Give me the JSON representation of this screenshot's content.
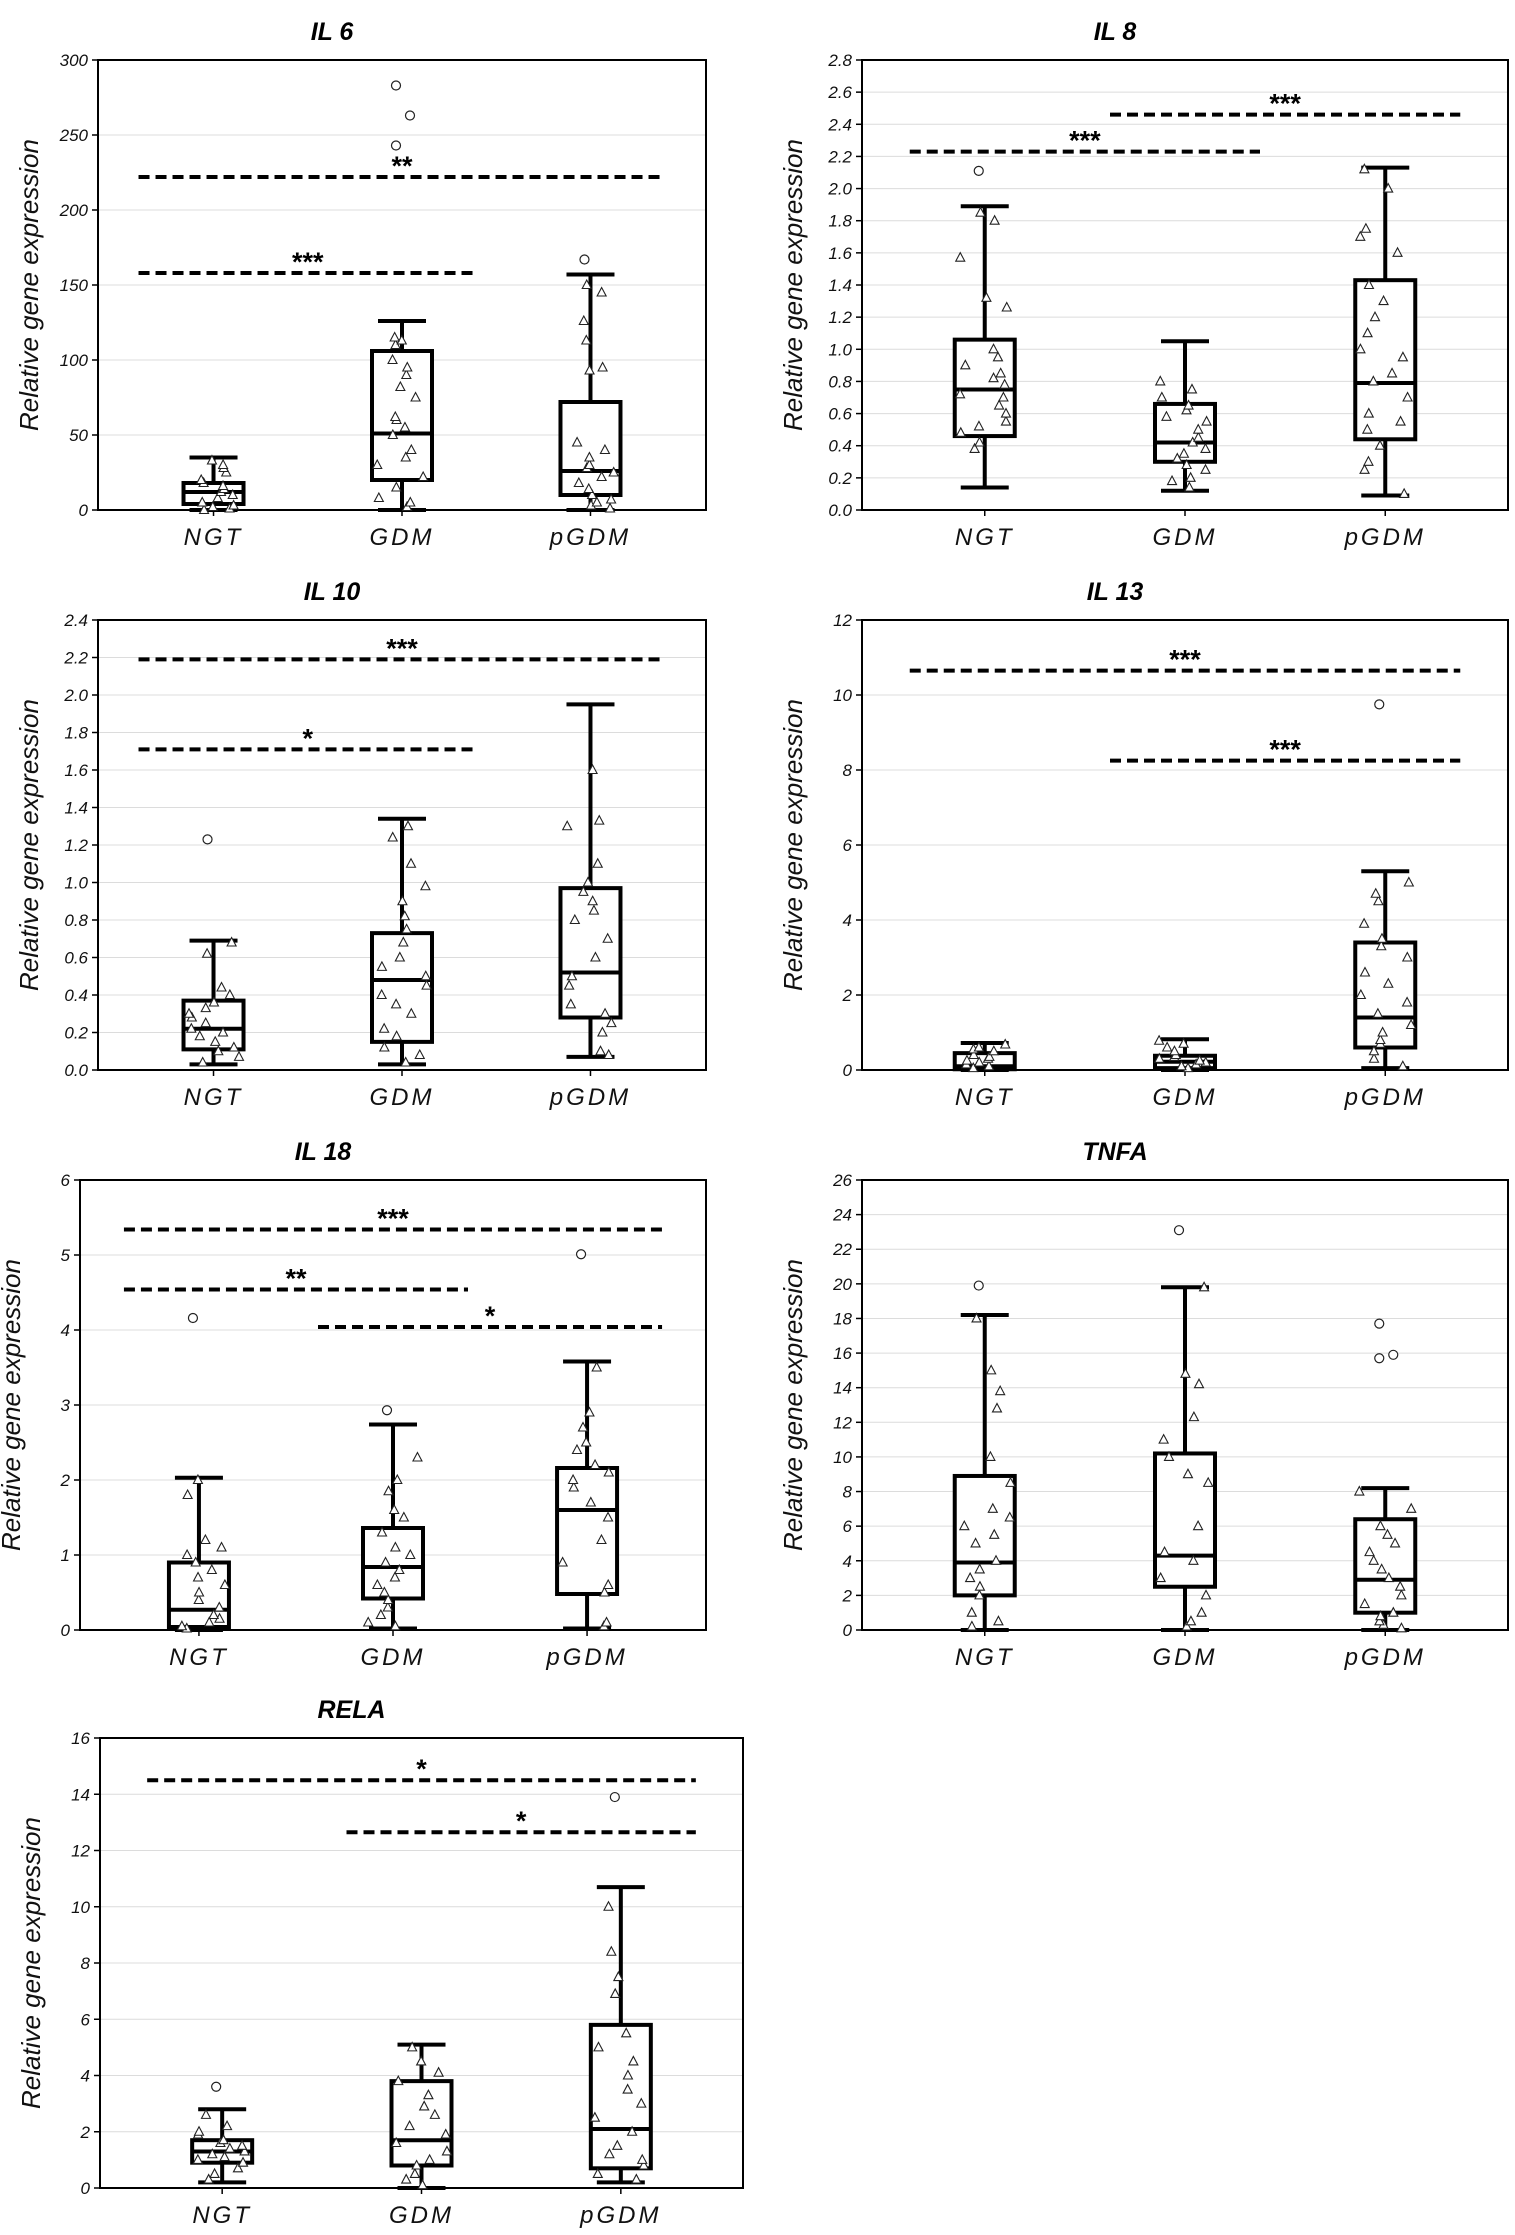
{
  "chart_data": [
    {
      "type": "box",
      "title": "IL 6",
      "ylabel": "Relative gene expression",
      "ylim": [
        0,
        300
      ],
      "yticks": [
        0,
        50,
        100,
        150,
        200,
        250,
        300
      ],
      "ytick_labels": [
        "0",
        "50",
        "100",
        "150",
        "200",
        "250",
        "300"
      ],
      "categories": [
        "NGT",
        "GDM",
        "pGDM"
      ],
      "boxes": [
        {
          "whisker_low": 0,
          "q1": 4,
          "median": 12,
          "q3": 18,
          "whisker_high": 35,
          "outliers": [],
          "points": [
            0,
            1,
            2,
            3,
            5,
            8,
            10,
            12,
            14,
            16,
            18,
            20,
            25,
            28,
            30,
            33
          ]
        },
        {
          "whisker_low": 0,
          "q1": 20,
          "median": 51,
          "q3": 106,
          "whisker_high": 126,
          "outliers": [
            243,
            263,
            283
          ],
          "points": [
            2,
            5,
            8,
            15,
            22,
            30,
            35,
            40,
            50,
            55,
            60,
            62,
            75,
            82,
            90,
            95,
            100,
            110,
            113,
            115
          ]
        },
        {
          "whisker_low": 0,
          "q1": 10,
          "median": 26,
          "q3": 72,
          "whisker_high": 157,
          "outliers": [
            167
          ],
          "points": [
            1,
            3,
            5,
            7,
            10,
            14,
            18,
            22,
            25,
            28,
            30,
            35,
            40,
            45,
            93,
            95,
            113,
            126,
            145,
            150
          ]
        }
      ],
      "significance": [
        {
          "label": "**",
          "from": "NGT",
          "to": "pGDM",
          "y": 222
        },
        {
          "label": "***",
          "from": "NGT",
          "to": "GDM",
          "y": 158
        }
      ]
    },
    {
      "type": "box",
      "title": "IL 8",
      "ylabel": "Relative gene expression",
      "ylim": [
        0,
        2.8
      ],
      "yticks": [
        0,
        0.2,
        0.4,
        0.6,
        0.8,
        1.0,
        1.2,
        1.4,
        1.6,
        1.8,
        2.0,
        2.2,
        2.4,
        2.6,
        2.8
      ],
      "ytick_labels": [
        "0.0",
        "0.2",
        "0.4",
        "0.6",
        "0.8",
        "1.0",
        "1.2",
        "1.4",
        "1.6",
        "1.8",
        "2.0",
        "2.2",
        "2.4",
        "2.6",
        "2.8"
      ],
      "categories": [
        "NGT",
        "GDM",
        "pGDM"
      ],
      "boxes": [
        {
          "whisker_low": 0.14,
          "q1": 0.46,
          "median": 0.75,
          "q3": 1.06,
          "whisker_high": 1.89,
          "outliers": [
            2.11
          ],
          "points": [
            0.38,
            0.42,
            0.48,
            0.52,
            0.55,
            0.6,
            0.65,
            0.7,
            0.72,
            0.78,
            0.82,
            0.85,
            0.9,
            0.95,
            1.0,
            1.26,
            1.32,
            1.57,
            1.8,
            1.85
          ]
        },
        {
          "whisker_low": 0.12,
          "q1": 0.3,
          "median": 0.42,
          "q3": 0.66,
          "whisker_high": 1.05,
          "outliers": [],
          "points": [
            0.14,
            0.18,
            0.2,
            0.25,
            0.28,
            0.32,
            0.35,
            0.38,
            0.42,
            0.45,
            0.5,
            0.55,
            0.58,
            0.62,
            0.65,
            0.7,
            0.75,
            0.8
          ]
        },
        {
          "whisker_low": 0.09,
          "q1": 0.44,
          "median": 0.79,
          "q3": 1.43,
          "whisker_high": 2.13,
          "outliers": [],
          "points": [
            0.1,
            0.25,
            0.3,
            0.4,
            0.5,
            0.55,
            0.6,
            0.7,
            0.8,
            0.85,
            0.95,
            1.0,
            1.1,
            1.2,
            1.3,
            1.4,
            1.6,
            1.7,
            1.75,
            2.0,
            2.12
          ]
        }
      ],
      "significance": [
        {
          "label": "***",
          "from": "NGT",
          "to": "GDM",
          "y": 2.23
        },
        {
          "label": "***",
          "from": "GDM",
          "to": "pGDM",
          "y": 2.46
        }
      ]
    },
    {
      "type": "box",
      "title": "IL 10",
      "ylabel": "Relative gene expression",
      "ylim": [
        0,
        2.4
      ],
      "yticks": [
        0,
        0.2,
        0.4,
        0.6,
        0.8,
        1.0,
        1.2,
        1.4,
        1.6,
        1.8,
        2.0,
        2.2,
        2.4
      ],
      "ytick_labels": [
        "0.0",
        "0.2",
        "0.4",
        "0.6",
        "0.8",
        "1.0",
        "1.2",
        "1.4",
        "1.6",
        "1.8",
        "2.0",
        "2.2",
        "2.4"
      ],
      "categories": [
        "NGT",
        "GDM",
        "pGDM"
      ],
      "boxes": [
        {
          "whisker_low": 0.03,
          "q1": 0.11,
          "median": 0.22,
          "q3": 0.37,
          "whisker_high": 0.69,
          "outliers": [
            1.23
          ],
          "points": [
            0.04,
            0.07,
            0.1,
            0.12,
            0.15,
            0.18,
            0.2,
            0.22,
            0.25,
            0.28,
            0.3,
            0.33,
            0.36,
            0.4,
            0.44,
            0.62,
            0.68
          ]
        },
        {
          "whisker_low": 0.03,
          "q1": 0.15,
          "median": 0.48,
          "q3": 0.73,
          "whisker_high": 1.34,
          "outliers": [],
          "points": [
            0.04,
            0.08,
            0.12,
            0.18,
            0.22,
            0.3,
            0.35,
            0.4,
            0.45,
            0.5,
            0.55,
            0.6,
            0.68,
            0.75,
            0.82,
            0.9,
            0.98,
            1.1,
            1.24,
            1.3
          ]
        },
        {
          "whisker_low": 0.07,
          "q1": 0.28,
          "median": 0.52,
          "q3": 0.97,
          "whisker_high": 1.95,
          "outliers": [],
          "points": [
            0.08,
            0.1,
            0.2,
            0.25,
            0.3,
            0.35,
            0.45,
            0.5,
            0.6,
            0.7,
            0.8,
            0.85,
            0.9,
            0.95,
            1.0,
            1.1,
            1.3,
            1.33,
            1.6
          ]
        }
      ],
      "significance": [
        {
          "label": "***",
          "from": "NGT",
          "to": "pGDM",
          "y": 2.19
        },
        {
          "label": "*",
          "from": "NGT",
          "to": "GDM",
          "y": 1.71
        }
      ]
    },
    {
      "type": "box",
      "title": "IL 13",
      "ylabel": "Relative gene expression",
      "ylim": [
        0,
        12
      ],
      "yticks": [
        0,
        2,
        4,
        6,
        8,
        10,
        12
      ],
      "ytick_labels": [
        "0",
        "2",
        "4",
        "6",
        "8",
        "10",
        "12"
      ],
      "categories": [
        "NGT",
        "GDM",
        "pGDM"
      ],
      "boxes": [
        {
          "whisker_low": 0,
          "q1": 0.02,
          "median": 0.1,
          "q3": 0.45,
          "whisker_high": 0.72,
          "outliers": [],
          "points": [
            0.05,
            0.1,
            0.15,
            0.2,
            0.25,
            0.3,
            0.35,
            0.4,
            0.5,
            0.55,
            0.6,
            0.68
          ]
        },
        {
          "whisker_low": 0,
          "q1": 0.05,
          "median": 0.22,
          "q3": 0.38,
          "whisker_high": 0.82,
          "outliers": [],
          "points": [
            0.05,
            0.1,
            0.15,
            0.2,
            0.25,
            0.3,
            0.35,
            0.4,
            0.5,
            0.6,
            0.7,
            0.78
          ]
        },
        {
          "whisker_low": 0.05,
          "q1": 0.6,
          "median": 1.4,
          "q3": 3.4,
          "whisker_high": 5.3,
          "outliers": [
            9.75
          ],
          "points": [
            0.1,
            0.3,
            0.5,
            0.7,
            0.8,
            1.0,
            1.2,
            1.5,
            1.8,
            2.0,
            2.3,
            2.6,
            3.0,
            3.3,
            3.5,
            3.9,
            4.5,
            4.7,
            5.0
          ]
        }
      ],
      "significance": [
        {
          "label": "***",
          "from": "NGT",
          "to": "pGDM",
          "y": 10.65
        },
        {
          "label": "***",
          "from": "GDM",
          "to": "pGDM",
          "y": 8.25
        }
      ]
    },
    {
      "type": "box",
      "title": "IL 18",
      "ylabel": "Relative gene expression",
      "ylim": [
        0,
        6
      ],
      "yticks": [
        0,
        1,
        2,
        3,
        4,
        5,
        6
      ],
      "ytick_labels": [
        "0",
        "1",
        "2",
        "3",
        "4",
        "5",
        "6"
      ],
      "categories": [
        "NGT",
        "GDM",
        "pGDM"
      ],
      "boxes": [
        {
          "whisker_low": 0,
          "q1": 0.04,
          "median": 0.27,
          "q3": 0.9,
          "whisker_high": 2.03,
          "outliers": [
            4.16
          ],
          "points": [
            0.02,
            0.05,
            0.1,
            0.15,
            0.2,
            0.3,
            0.4,
            0.5,
            0.6,
            0.7,
            0.8,
            0.9,
            1.0,
            1.1,
            1.2,
            1.8,
            2.0
          ]
        },
        {
          "whisker_low": 0.02,
          "q1": 0.42,
          "median": 0.84,
          "q3": 1.36,
          "whisker_high": 2.74,
          "outliers": [
            2.93
          ],
          "points": [
            0.05,
            0.1,
            0.2,
            0.3,
            0.4,
            0.5,
            0.6,
            0.7,
            0.8,
            0.9,
            1.0,
            1.1,
            1.3,
            1.5,
            1.6,
            1.85,
            2.0,
            2.3
          ]
        },
        {
          "whisker_low": 0.02,
          "q1": 0.48,
          "median": 1.6,
          "q3": 2.16,
          "whisker_high": 3.58,
          "outliers": [
            5.01
          ],
          "points": [
            0.05,
            0.1,
            0.5,
            0.6,
            0.9,
            1.2,
            1.5,
            1.7,
            1.9,
            2.0,
            2.1,
            2.2,
            2.4,
            2.5,
            2.7,
            2.9,
            3.5
          ]
        }
      ],
      "significance": [
        {
          "label": "***",
          "from": "NGT",
          "to": "pGDM",
          "y": 5.34
        },
        {
          "label": "**",
          "from": "NGT",
          "to": "GDM",
          "y": 4.54
        },
        {
          "label": "*",
          "from": "GDM",
          "to": "pGDM",
          "y": 4.04
        }
      ]
    },
    {
      "type": "box",
      "title": "TNFA",
      "ylabel": "Relative gene expression",
      "ylim": [
        0,
        26
      ],
      "yticks": [
        0,
        2,
        4,
        6,
        8,
        10,
        12,
        14,
        16,
        18,
        20,
        22,
        24,
        26
      ],
      "ytick_labels": [
        "0",
        "2",
        "4",
        "6",
        "8",
        "10",
        "12",
        "14",
        "16",
        "18",
        "20",
        "22",
        "24",
        "26"
      ],
      "categories": [
        "NGT",
        "GDM",
        "pGDM"
      ],
      "boxes": [
        {
          "whisker_low": 0,
          "q1": 2.0,
          "median": 3.9,
          "q3": 8.9,
          "whisker_high": 18.2,
          "outliers": [
            19.9
          ],
          "points": [
            0.2,
            0.5,
            1.0,
            2.0,
            2.5,
            3.0,
            3.5,
            4.0,
            5.0,
            5.5,
            6.0,
            6.5,
            7.0,
            8.5,
            10.0,
            12.8,
            13.8,
            15.0,
            18.0
          ]
        },
        {
          "whisker_low": 0,
          "q1": 2.5,
          "median": 4.3,
          "q3": 10.2,
          "whisker_high": 19.8,
          "outliers": [
            23.1
          ],
          "points": [
            0.2,
            0.5,
            1.0,
            2.0,
            3.0,
            4.0,
            4.5,
            6.0,
            8.5,
            9.0,
            10.0,
            11.0,
            12.3,
            14.2,
            14.8,
            19.8
          ]
        },
        {
          "whisker_low": 0,
          "q1": 1.0,
          "median": 2.9,
          "q3": 6.4,
          "whisker_high": 8.2,
          "outliers": [
            15.7,
            15.9,
            17.7
          ],
          "points": [
            0.1,
            0.3,
            0.5,
            0.8,
            1.0,
            1.5,
            2.0,
            2.5,
            3.0,
            3.5,
            4.0,
            4.5,
            5.0,
            5.5,
            6.0,
            7.0,
            8.0
          ]
        }
      ],
      "significance": []
    },
    {
      "type": "box",
      "title": "RELA",
      "ylabel": "Relative gene expression",
      "ylim": [
        0,
        16
      ],
      "yticks": [
        0,
        2,
        4,
        6,
        8,
        10,
        12,
        14,
        16
      ],
      "ytick_labels": [
        "0",
        "2",
        "4",
        "6",
        "8",
        "10",
        "12",
        "14",
        "16"
      ],
      "categories": [
        "NGT",
        "GDM",
        "pGDM"
      ],
      "boxes": [
        {
          "whisker_low": 0.2,
          "q1": 0.9,
          "median": 1.3,
          "q3": 1.7,
          "whisker_high": 2.8,
          "outliers": [
            3.6
          ],
          "points": [
            0.3,
            0.5,
            0.7,
            0.9,
            1.0,
            1.1,
            1.2,
            1.3,
            1.4,
            1.5,
            1.6,
            1.7,
            1.9,
            2.0,
            2.2,
            2.6
          ]
        },
        {
          "whisker_low": 0,
          "q1": 0.8,
          "median": 1.7,
          "q3": 3.8,
          "whisker_high": 5.1,
          "outliers": [],
          "points": [
            0.1,
            0.3,
            0.5,
            0.8,
            1.0,
            1.3,
            1.6,
            1.9,
            2.2,
            2.6,
            2.9,
            3.3,
            3.8,
            4.1,
            4.5,
            5.0
          ]
        },
        {
          "whisker_low": 0.2,
          "q1": 0.7,
          "median": 2.1,
          "q3": 5.8,
          "whisker_high": 10.7,
          "outliers": [
            13.9
          ],
          "points": [
            0.3,
            0.5,
            0.8,
            1.0,
            1.2,
            1.5,
            2.0,
            2.5,
            3.0,
            3.5,
            4.0,
            4.5,
            5.0,
            5.5,
            6.9,
            7.5,
            8.4,
            10.0
          ]
        }
      ],
      "significance": [
        {
          "label": "*",
          "from": "NGT",
          "to": "pGDM",
          "y": 14.5
        },
        {
          "label": "*",
          "from": "GDM",
          "to": "pGDM",
          "y": 12.65
        }
      ]
    }
  ]
}
